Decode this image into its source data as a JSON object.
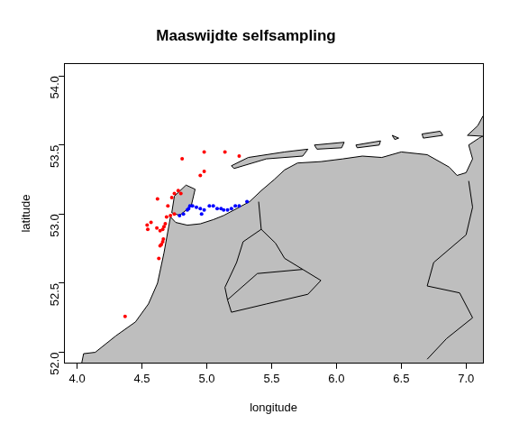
{
  "chart_data": {
    "type": "scatter",
    "title": "Maaswijdte selfsampling",
    "x_label": "longitude",
    "y_label": "latitude",
    "xlim": [
      3.9,
      7.13
    ],
    "ylim": [
      51.92,
      54.09
    ],
    "xticks": [
      {
        "value": 4,
        "label": "4.0"
      },
      {
        "value": 4.5,
        "label": "4.5"
      },
      {
        "value": 5,
        "label": "5.0"
      },
      {
        "value": 5.5,
        "label": "5.5"
      },
      {
        "value": 6,
        "label": "6.0"
      },
      {
        "value": 6.5,
        "label": "6.5"
      },
      {
        "value": 7,
        "label": "7.0"
      }
    ],
    "yticks": [
      {
        "value": 52,
        "label": "52.0"
      },
      {
        "value": 52.5,
        "label": "52.5"
      },
      {
        "value": 53,
        "label": "53.0"
      },
      {
        "value": 53.5,
        "label": "53.5"
      },
      {
        "value": 54,
        "label": "54.0"
      }
    ],
    "grid": false,
    "series": [
      {
        "color": "#ff0000",
        "marker": "circle",
        "values": [
          [
            4.37,
            52.26
          ],
          [
            4.545,
            52.89
          ],
          [
            4.57,
            52.94
          ],
          [
            4.54,
            52.92
          ],
          [
            4.62,
            53.11
          ],
          [
            4.615,
            52.9
          ],
          [
            4.64,
            52.88
          ],
          [
            4.66,
            52.89
          ],
          [
            4.67,
            52.91
          ],
          [
            4.63,
            52.68
          ],
          [
            4.64,
            52.77
          ],
          [
            4.65,
            52.78
          ],
          [
            4.66,
            52.8
          ],
          [
            4.665,
            52.82
          ],
          [
            4.68,
            52.93
          ],
          [
            4.7,
            53.06
          ],
          [
            4.73,
            53.12
          ],
          [
            4.75,
            53.15
          ],
          [
            4.78,
            53.17
          ],
          [
            4.8,
            53.15
          ],
          [
            4.81,
            53.4
          ],
          [
            4.95,
            53.28
          ],
          [
            4.98,
            53.31
          ],
          [
            4.98,
            53.45
          ],
          [
            5.14,
            53.45
          ],
          [
            5.25,
            53.42
          ],
          [
            4.72,
            52.99
          ],
          [
            4.75,
            53.0
          ],
          [
            4.69,
            52.98
          ]
        ]
      },
      {
        "color": "#0000ff",
        "marker": "circle",
        "values": [
          [
            4.79,
            52.99
          ],
          [
            4.82,
            53.0
          ],
          [
            4.85,
            53.03
          ],
          [
            4.87,
            53.06
          ],
          [
            4.89,
            53.06
          ],
          [
            4.92,
            53.05
          ],
          [
            4.95,
            53.04
          ],
          [
            4.96,
            53.0
          ],
          [
            4.98,
            53.03
          ],
          [
            5.02,
            53.06
          ],
          [
            5.05,
            53.06
          ],
          [
            5.08,
            53.04
          ],
          [
            5.11,
            53.04
          ],
          [
            5.13,
            53.03
          ],
          [
            5.16,
            53.03
          ],
          [
            5.19,
            53.04
          ],
          [
            5.22,
            53.06
          ],
          [
            5.25,
            53.06
          ],
          [
            5.31,
            53.09
          ],
          [
            4.86,
            53.04
          ]
        ]
      }
    ],
    "land": {
      "color": "#bebebe",
      "polygons": [
        [
          [
            4.02,
            51.85
          ],
          [
            4.05,
            51.99
          ],
          [
            4.14,
            52.0
          ],
          [
            4.3,
            52.12
          ],
          [
            4.45,
            52.22
          ],
          [
            4.55,
            52.35
          ],
          [
            4.62,
            52.5
          ],
          [
            4.67,
            52.72
          ],
          [
            4.72,
            52.98
          ],
          [
            4.76,
            52.94
          ],
          [
            4.85,
            52.92
          ],
          [
            4.95,
            52.93
          ],
          [
            5.05,
            52.96
          ],
          [
            5.13,
            52.99
          ],
          [
            5.25,
            53.05
          ],
          [
            5.33,
            53.09
          ],
          [
            5.42,
            53.17
          ],
          [
            5.52,
            53.25
          ],
          [
            5.6,
            53.32
          ],
          [
            5.7,
            53.37
          ],
          [
            5.88,
            53.38
          ],
          [
            6.05,
            53.4
          ],
          [
            6.2,
            53.42
          ],
          [
            6.35,
            53.41
          ],
          [
            6.5,
            53.45
          ],
          [
            6.7,
            53.43
          ],
          [
            6.87,
            53.34
          ],
          [
            6.93,
            53.28
          ],
          [
            7.0,
            53.3
          ],
          [
            7.05,
            53.4
          ],
          [
            7.02,
            53.5
          ],
          [
            7.1,
            53.55
          ],
          [
            7.2,
            53.6
          ],
          [
            7.2,
            51.85
          ]
        ],
        [
          [
            4.73,
            53.01
          ],
          [
            4.75,
            53.13
          ],
          [
            4.84,
            53.21
          ],
          [
            4.91,
            53.18
          ],
          [
            4.88,
            53.06
          ],
          [
            4.79,
            52.99
          ]
        ],
        [
          [
            5.19,
            53.35
          ],
          [
            5.32,
            53.41
          ],
          [
            5.6,
            53.45
          ],
          [
            5.78,
            53.47
          ],
          [
            5.74,
            53.42
          ],
          [
            5.46,
            53.4
          ],
          [
            5.21,
            53.33
          ]
        ],
        [
          [
            5.83,
            53.5
          ],
          [
            6.06,
            53.52
          ],
          [
            6.04,
            53.48
          ],
          [
            5.85,
            53.47
          ]
        ],
        [
          [
            6.15,
            53.5
          ],
          [
            6.34,
            53.53
          ],
          [
            6.33,
            53.5
          ],
          [
            6.16,
            53.48
          ]
        ],
        [
          [
            6.43,
            53.57
          ],
          [
            6.48,
            53.55
          ],
          [
            6.45,
            53.54
          ]
        ],
        [
          [
            6.66,
            53.58
          ],
          [
            6.8,
            53.6
          ],
          [
            6.82,
            53.57
          ],
          [
            6.67,
            53.55
          ]
        ],
        [
          [
            7.01,
            53.57
          ],
          [
            7.09,
            53.64
          ],
          [
            7.13,
            53.71
          ],
          [
            7.2,
            53.71
          ],
          [
            7.2,
            53.56
          ]
        ]
      ],
      "lines": [
        [
          [
            5.4,
            53.09
          ],
          [
            5.42,
            52.89
          ],
          [
            5.28,
            52.8
          ],
          [
            5.23,
            52.65
          ],
          [
            5.14,
            52.47
          ],
          [
            5.16,
            52.38
          ]
        ],
        [
          [
            5.42,
            52.89
          ],
          [
            5.53,
            52.79
          ],
          [
            5.6,
            52.68
          ],
          [
            5.74,
            52.6
          ]
        ],
        [
          [
            5.16,
            52.38
          ],
          [
            5.39,
            52.57
          ],
          [
            5.74,
            52.6
          ],
          [
            5.88,
            52.52
          ],
          [
            5.78,
            52.42
          ],
          [
            5.46,
            52.35
          ],
          [
            5.19,
            52.29
          ],
          [
            5.16,
            52.38
          ]
        ],
        [
          [
            7.02,
            53.24
          ],
          [
            7.05,
            53.05
          ],
          [
            7.0,
            52.85
          ],
          [
            6.75,
            52.65
          ],
          [
            6.7,
            52.48
          ],
          [
            6.95,
            52.43
          ],
          [
            7.05,
            52.25
          ],
          [
            6.85,
            52.1
          ],
          [
            6.7,
            51.95
          ]
        ]
      ]
    }
  }
}
